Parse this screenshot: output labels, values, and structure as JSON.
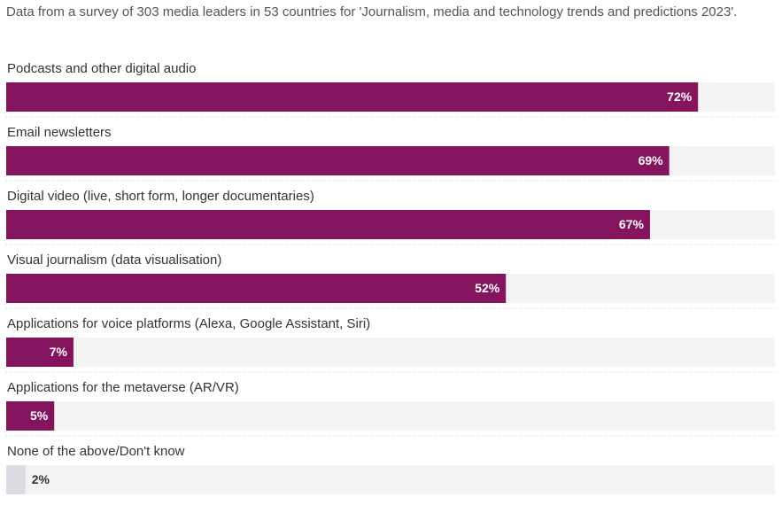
{
  "chart_data": {
    "type": "bar",
    "orientation": "horizontal",
    "title": "Data from a survey of 303 media leaders in 53 countries for 'Journalism, media and technology trends and predictions 2023'.",
    "categories": [
      "Podcasts and other digital audio",
      "Email newsletters",
      "Digital video (live, short form, longer documentaries)",
      "Visual journalism (data visualisation)",
      "Applications for voice platforms (Alexa, Google Assistant, Siri)",
      "Applications for the metaverse (AR/VR)",
      "None of the above/Don't know"
    ],
    "values": [
      72,
      69,
      67,
      52,
      7,
      5,
      2
    ],
    "value_labels": [
      "72%",
      "69%",
      "67%",
      "52%",
      "7%",
      "5%",
      "2%"
    ],
    "colors": [
      "#85145e",
      "#85145e",
      "#85145e",
      "#85145e",
      "#85145e",
      "#85145e",
      "#dcdde3"
    ],
    "xlim": [
      0,
      80
    ]
  }
}
